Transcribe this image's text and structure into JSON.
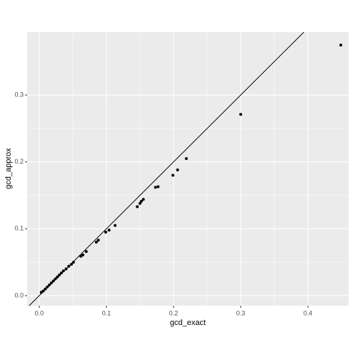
{
  "chart_data": {
    "type": "scatter",
    "x_label": "gcd_exact",
    "y_label": "gcd_approx",
    "x": [
      0.449,
      0.3,
      0.219,
      0.206,
      0.199,
      0.177,
      0.173,
      0.155,
      0.152,
      0.15,
      0.146,
      0.113,
      0.104,
      0.099,
      0.088,
      0.085,
      0.07,
      0.065,
      0.062,
      0.051,
      0.048,
      0.044,
      0.04,
      0.036,
      0.033,
      0.03,
      0.027,
      0.024,
      0.021,
      0.018,
      0.015,
      0.012,
      0.009,
      0.006,
      0.003
    ],
    "y": [
      0.3746,
      0.271,
      0.205,
      0.188,
      0.18,
      0.163,
      0.162,
      0.144,
      0.141,
      0.138,
      0.133,
      0.105,
      0.098,
      0.095,
      0.083,
      0.08,
      0.066,
      0.061,
      0.059,
      0.05,
      0.047,
      0.044,
      0.04,
      0.037,
      0.034,
      0.031,
      0.028,
      0.025,
      0.022,
      0.019,
      0.016,
      0.013,
      0.01,
      0.007,
      0.005
    ],
    "color": "#000000",
    "reference_line": {
      "intercept": 0,
      "slope": 1
    },
    "xlim": [
      -0.018,
      0.4606
    ],
    "ylim": [
      -0.015,
      0.394
    ],
    "xticks": [
      {
        "value": 0,
        "label": "0.0"
      },
      0.1,
      0.2,
      0.3,
      0.4
    ],
    "yticks": [
      {
        "value": 0,
        "label": "0.0"
      },
      0.1,
      0.2,
      0.3
    ],
    "grid": true
  }
}
